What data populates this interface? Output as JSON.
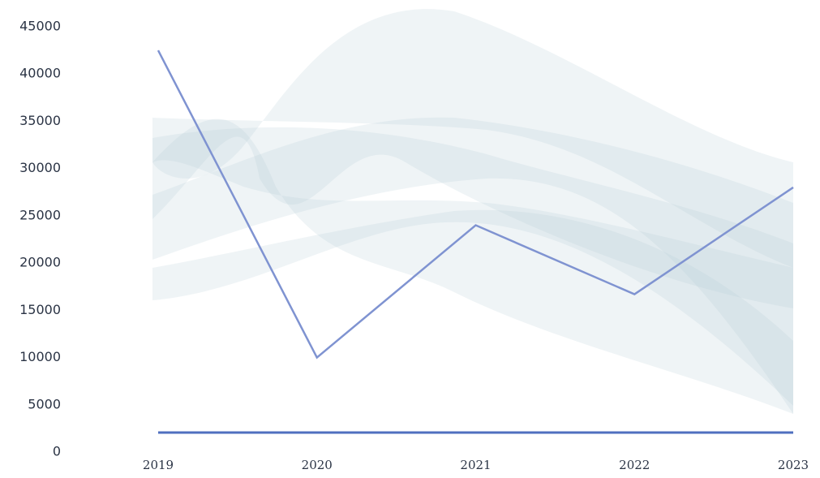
{
  "chart_data": {
    "type": "line",
    "categories": [
      "2019",
      "2020",
      "2021",
      "2022",
      "2023"
    ],
    "values": [
      42500,
      10000,
      24000,
      16700,
      28000
    ],
    "color": "#7f93d1",
    "ylim": [
      0,
      45000
    ],
    "yticks": [
      0,
      5000,
      10000,
      15000,
      20000,
      25000,
      30000,
      35000,
      40000,
      45000
    ]
  }
}
